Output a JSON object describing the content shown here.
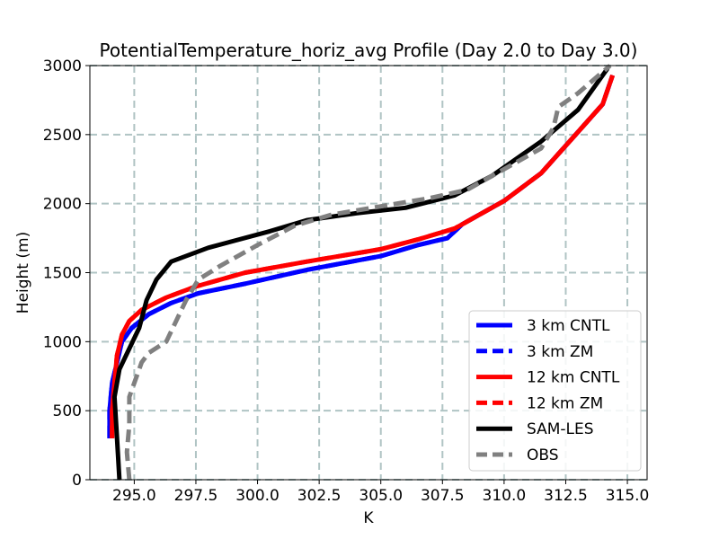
{
  "chart_data": {
    "type": "line",
    "title": "PotentialTemperature_horiz_avg Profile (Day 2.0 to Day 3.0)",
    "xlabel": "K",
    "ylabel": "Height (m)",
    "xlim": [
      293.2,
      315.8
    ],
    "ylim": [
      0,
      3000
    ],
    "grid": true,
    "legend_position": "lower-right",
    "x_ticks": [
      "295.0",
      "297.5",
      "300.0",
      "302.5",
      "305.0",
      "307.5",
      "310.0",
      "312.5",
      "315.0"
    ],
    "y_ticks": [
      "0",
      "500",
      "1000",
      "1500",
      "2000",
      "2500",
      "3000"
    ],
    "series": [
      {
        "name": "3 km CNTL",
        "color": "#0000ff",
        "dash": "solid",
        "points": [
          [
            294.0,
            300
          ],
          [
            294.0,
            500
          ],
          [
            294.1,
            700
          ],
          [
            294.3,
            850
          ],
          [
            294.5,
            1000
          ],
          [
            294.9,
            1100
          ],
          [
            295.6,
            1200
          ],
          [
            296.5,
            1280
          ],
          [
            297.6,
            1350
          ],
          [
            299.5,
            1420
          ],
          [
            302.0,
            1520
          ],
          [
            305.0,
            1620
          ],
          [
            306.5,
            1700
          ],
          [
            307.7,
            1750
          ],
          [
            308.3,
            1850
          ],
          [
            310.0,
            2020
          ],
          [
            311.5,
            2220
          ],
          [
            313.0,
            2520
          ],
          [
            314.0,
            2720
          ],
          [
            314.4,
            2930
          ]
        ]
      },
      {
        "name": "3 km ZM",
        "color": "#0000ff",
        "dash": "dashed",
        "points": [
          [
            294.0,
            300
          ],
          [
            294.0,
            500
          ],
          [
            294.1,
            700
          ],
          [
            294.3,
            850
          ],
          [
            294.5,
            1000
          ],
          [
            294.9,
            1100
          ],
          [
            295.6,
            1200
          ],
          [
            296.5,
            1280
          ],
          [
            297.6,
            1350
          ],
          [
            299.5,
            1420
          ],
          [
            302.0,
            1520
          ],
          [
            305.0,
            1620
          ],
          [
            306.5,
            1700
          ],
          [
            307.7,
            1750
          ],
          [
            308.3,
            1850
          ],
          [
            310.0,
            2020
          ],
          [
            311.5,
            2220
          ],
          [
            313.0,
            2520
          ],
          [
            314.0,
            2720
          ],
          [
            314.4,
            2930
          ]
        ]
      },
      {
        "name": "12 km CNTL",
        "color": "#ff0000",
        "dash": "solid",
        "points": [
          [
            294.1,
            300
          ],
          [
            294.1,
            500
          ],
          [
            294.2,
            700
          ],
          [
            294.3,
            900
          ],
          [
            294.5,
            1050
          ],
          [
            294.8,
            1150
          ],
          [
            295.3,
            1230
          ],
          [
            296.3,
            1320
          ],
          [
            297.5,
            1400
          ],
          [
            299.5,
            1500
          ],
          [
            302.0,
            1580
          ],
          [
            305.0,
            1670
          ],
          [
            306.5,
            1740
          ],
          [
            308.0,
            1820
          ],
          [
            310.0,
            2020
          ],
          [
            311.5,
            2220
          ],
          [
            313.0,
            2520
          ],
          [
            314.0,
            2720
          ],
          [
            314.4,
            2930
          ]
        ]
      },
      {
        "name": "12 km ZM",
        "color": "#ff0000",
        "dash": "dashed",
        "points": [
          [
            294.1,
            300
          ],
          [
            294.1,
            500
          ],
          [
            294.2,
            700
          ],
          [
            294.3,
            900
          ],
          [
            294.5,
            1050
          ],
          [
            294.8,
            1150
          ],
          [
            295.3,
            1230
          ],
          [
            296.3,
            1320
          ],
          [
            297.5,
            1400
          ],
          [
            299.5,
            1500
          ],
          [
            302.0,
            1580
          ],
          [
            305.0,
            1670
          ],
          [
            306.5,
            1740
          ],
          [
            308.0,
            1820
          ],
          [
            310.0,
            2020
          ],
          [
            311.5,
            2220
          ],
          [
            313.0,
            2520
          ],
          [
            314.0,
            2720
          ],
          [
            314.4,
            2930
          ]
        ]
      },
      {
        "name": "SAM-LES",
        "color": "#000000",
        "dash": "solid",
        "points": [
          [
            294.4,
            0
          ],
          [
            294.3,
            300
          ],
          [
            294.2,
            600
          ],
          [
            294.4,
            800
          ],
          [
            294.8,
            950
          ],
          [
            295.2,
            1100
          ],
          [
            295.5,
            1300
          ],
          [
            295.9,
            1450
          ],
          [
            296.5,
            1580
          ],
          [
            298.0,
            1680
          ],
          [
            300.5,
            1800
          ],
          [
            302.0,
            1880
          ],
          [
            304.0,
            1930
          ],
          [
            306.0,
            1970
          ],
          [
            308.0,
            2060
          ],
          [
            309.5,
            2200
          ],
          [
            311.5,
            2450
          ],
          [
            313.0,
            2680
          ],
          [
            314.2,
            2980
          ]
        ]
      },
      {
        "name": "OBS",
        "color": "#808080",
        "dash": "dashed",
        "points": [
          [
            294.8,
            0
          ],
          [
            294.7,
            200
          ],
          [
            294.8,
            400
          ],
          [
            294.8,
            600
          ],
          [
            295.0,
            700
          ],
          [
            295.3,
            850
          ],
          [
            295.6,
            920
          ],
          [
            296.3,
            1000
          ],
          [
            296.7,
            1150
          ],
          [
            297.1,
            1300
          ],
          [
            297.6,
            1450
          ],
          [
            298.5,
            1550
          ],
          [
            300.0,
            1700
          ],
          [
            301.5,
            1840
          ],
          [
            303.0,
            1920
          ],
          [
            305.0,
            1980
          ],
          [
            307.0,
            2040
          ],
          [
            308.5,
            2100
          ],
          [
            310.0,
            2250
          ],
          [
            311.5,
            2400
          ],
          [
            312.0,
            2550
          ],
          [
            312.2,
            2700
          ],
          [
            313.0,
            2800
          ],
          [
            314.3,
            3000
          ]
        ]
      }
    ]
  }
}
